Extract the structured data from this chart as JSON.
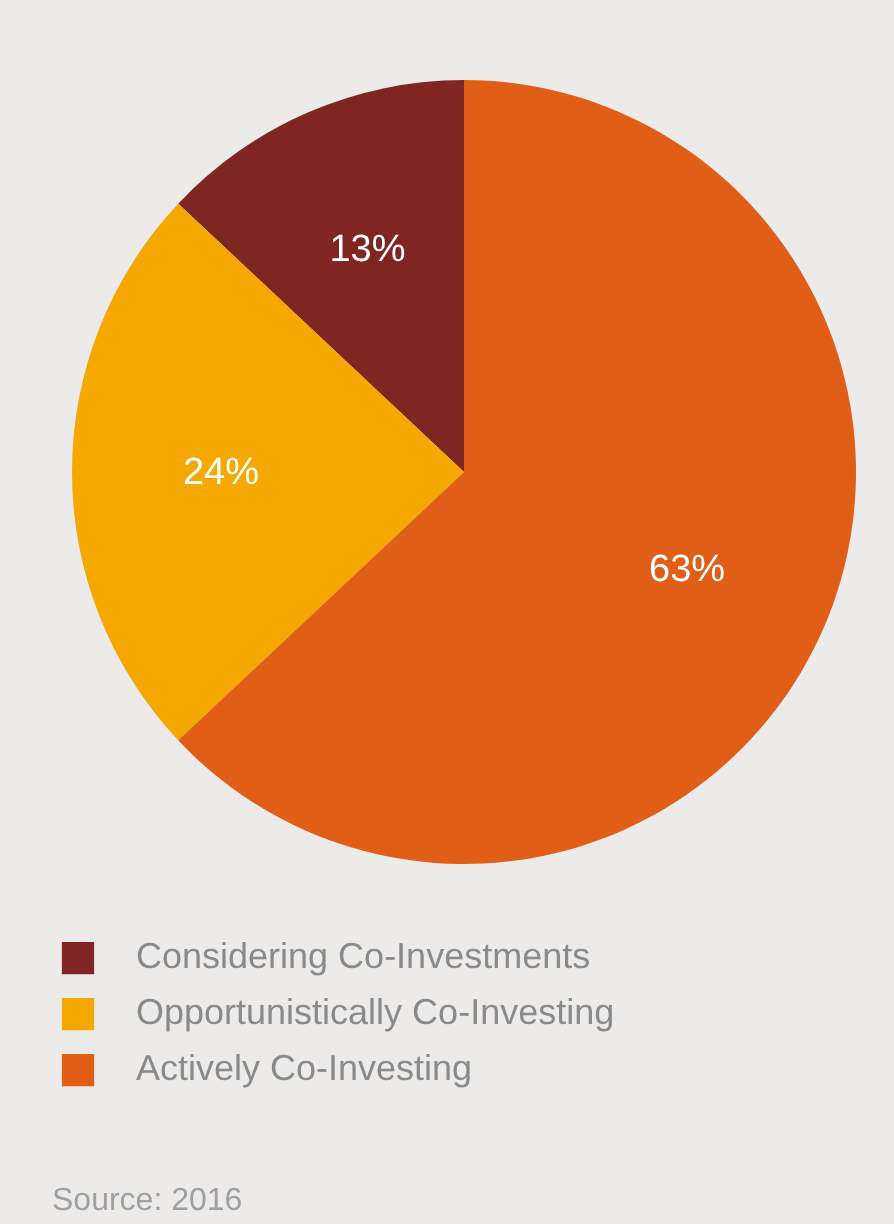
{
  "chart_data": {
    "type": "pie",
    "categories": [
      "Considering Co-Investments",
      "Opportunistically Co-Investing",
      "Actively Co-Investing"
    ],
    "values": [
      13,
      24,
      63
    ],
    "colors": [
      "#7f2522",
      "#f5a800",
      "#e05e16"
    ],
    "value_labels": [
      "13%",
      "24%",
      "63%"
    ],
    "legend": "bottom left",
    "annotations": [
      "Source: 2016"
    ]
  }
}
